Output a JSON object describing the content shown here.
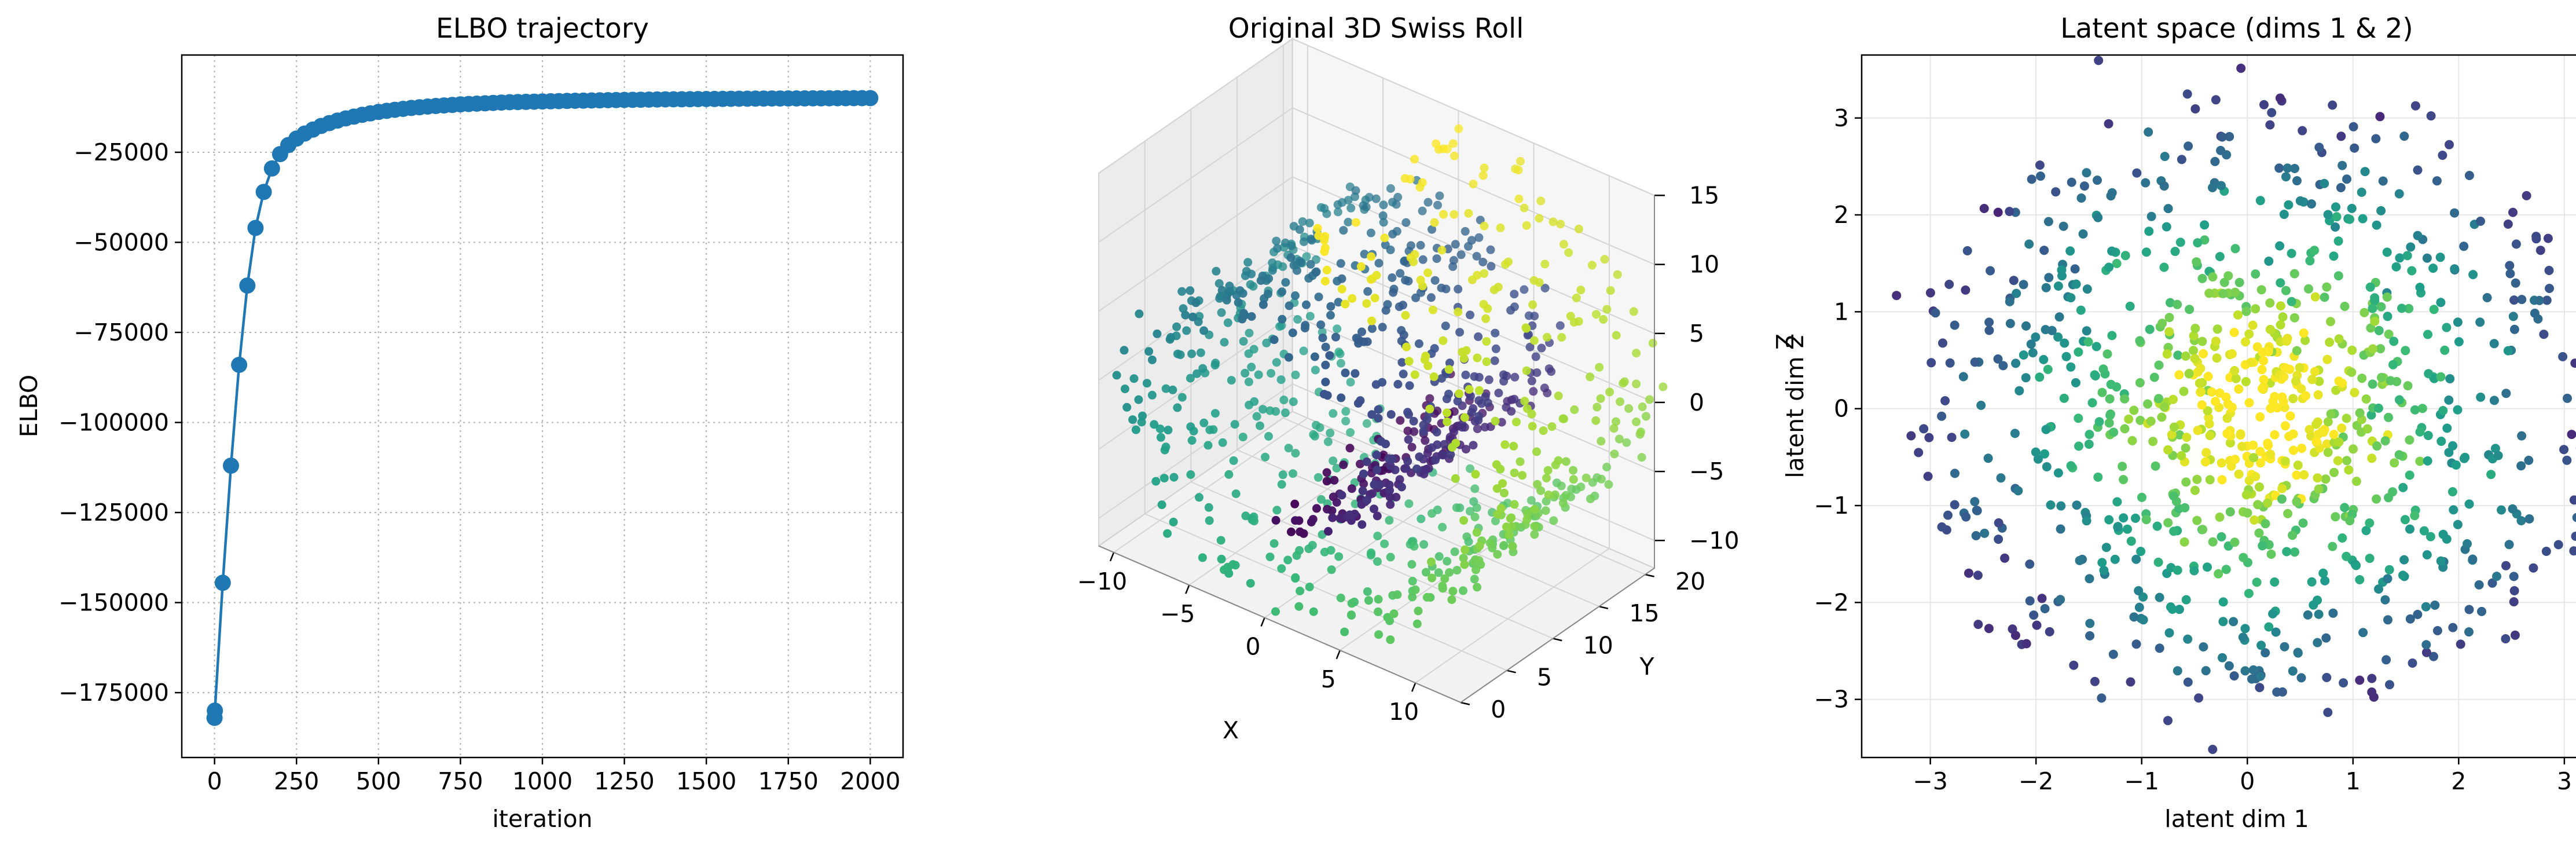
{
  "chart_data": [
    {
      "type": "line",
      "title": "ELBO trajectory",
      "xlabel": "iteration",
      "ylabel": "ELBO",
      "xlim": [
        -100,
        2100
      ],
      "ylim": [
        -193000,
        2000
      ],
      "xticks": [
        0,
        250,
        500,
        750,
        1000,
        1250,
        1500,
        1750,
        2000
      ],
      "xtick_labels": [
        "0",
        "250",
        "500",
        "750",
        "1000",
        "1250",
        "1500",
        "1750",
        "2000"
      ],
      "yticks": [
        -175000,
        -150000,
        -125000,
        -100000,
        -75000,
        -50000,
        -25000
      ],
      "ytick_labels": [
        "−175000",
        "−150000",
        "−125000",
        "−100000",
        "−75000",
        "−50000",
        "−25000"
      ],
      "grid": "dotted",
      "color": "#1f77b4",
      "marker": "circle",
      "series": [
        {
          "x": [
            0,
            1,
            25,
            50,
            75,
            100,
            125,
            150,
            175,
            200,
            225,
            250,
            275,
            300,
            325,
            350,
            375,
            400,
            425,
            450,
            475,
            500,
            525,
            550,
            575,
            600,
            625,
            650,
            675,
            700,
            725,
            750,
            775,
            800,
            825,
            850,
            875,
            900,
            925,
            950,
            975,
            1000,
            1025,
            1050,
            1075,
            1100,
            1125,
            1150,
            1175,
            1200,
            1225,
            1250,
            1275,
            1300,
            1325,
            1350,
            1375,
            1400,
            1425,
            1450,
            1475,
            1500,
            1525,
            1550,
            1575,
            1600,
            1625,
            1650,
            1675,
            1700,
            1725,
            1750,
            1775,
            1800,
            1825,
            1850,
            1875,
            1900,
            1925,
            1950,
            1975,
            2000
          ],
          "y": [
            -182000,
            -180000,
            -144500,
            -112000,
            -84000,
            -62000,
            -46000,
            -36000,
            -29500,
            -25500,
            -23000,
            -21200,
            -19800,
            -18700,
            -17700,
            -16900,
            -16200,
            -15600,
            -15100,
            -14600,
            -14200,
            -13800,
            -13500,
            -13200,
            -12950,
            -12700,
            -12500,
            -12300,
            -12150,
            -12000,
            -11850,
            -11700,
            -11600,
            -11500,
            -11400,
            -11300,
            -11200,
            -11100,
            -11050,
            -11000,
            -10950,
            -10900,
            -10850,
            -10800,
            -10750,
            -10700,
            -10660,
            -10620,
            -10580,
            -10540,
            -10500,
            -10470,
            -10440,
            -10410,
            -10380,
            -10350,
            -10320,
            -10300,
            -10280,
            -10260,
            -10240,
            -10220,
            -10200,
            -10180,
            -10160,
            -10140,
            -10120,
            -10100,
            -10090,
            -10080,
            -10070,
            -10060,
            -10050,
            -10040,
            -10030,
            -10020,
            -10010,
            -10000,
            -9990,
            -9980,
            -9970,
            -9960
          ]
        }
      ]
    },
    {
      "type": "scatter3d",
      "title": "Original 3D Swiss Roll",
      "xlabel": "X",
      "ylabel": "Y",
      "zlabel": "Z",
      "xlim": [
        -11,
        13
      ],
      "ylim": [
        0,
        21
      ],
      "zlim": [
        -12,
        15
      ],
      "xticks": [
        -10,
        -5,
        0,
        5,
        10
      ],
      "xtick_labels": [
        "−10",
        "−5",
        "0",
        "5",
        "10"
      ],
      "yticks": [
        0,
        5,
        10,
        15,
        20
      ],
      "ytick_labels": [
        "0",
        "5",
        "10",
        "15",
        "20"
      ],
      "zticks": [
        -10,
        -5,
        0,
        5,
        10,
        15
      ],
      "ztick_labels": [
        "−10",
        "−5",
        "0",
        "5",
        "10",
        "15"
      ],
      "colormap": "viridis",
      "point_count": 1000,
      "generator": {
        "t_range": [
          4.7,
          14.1
        ],
        "y_range": [
          0,
          21
        ],
        "noise": 0.5,
        "seed": 7
      }
    },
    {
      "type": "scatter",
      "title": "Latent space (dims 1 & 2)",
      "xlabel": "latent dim 1",
      "ylabel": "latent dim 2",
      "xlim": [
        -3.65,
        3.45
      ],
      "ylim": [
        -3.6,
        3.65
      ],
      "xticks": [
        -3,
        -2,
        -1,
        0,
        1,
        2,
        3
      ],
      "xtick_labels": [
        "−3",
        "−2",
        "−1",
        "0",
        "1",
        "2",
        "3"
      ],
      "yticks": [
        -3,
        -2,
        -1,
        0,
        1,
        2,
        3
      ],
      "ytick_labels": [
        "−3",
        "−2",
        "−1",
        "0",
        "1",
        "2",
        "3"
      ],
      "grid": "solid-light",
      "colormap": "viridis",
      "point_count": 1000,
      "generator": {
        "center": [
          0.15,
          0.0
        ],
        "radius_range": [
          0.3,
          3.3
        ],
        "noise": 0.18,
        "seed": 11
      }
    }
  ]
}
